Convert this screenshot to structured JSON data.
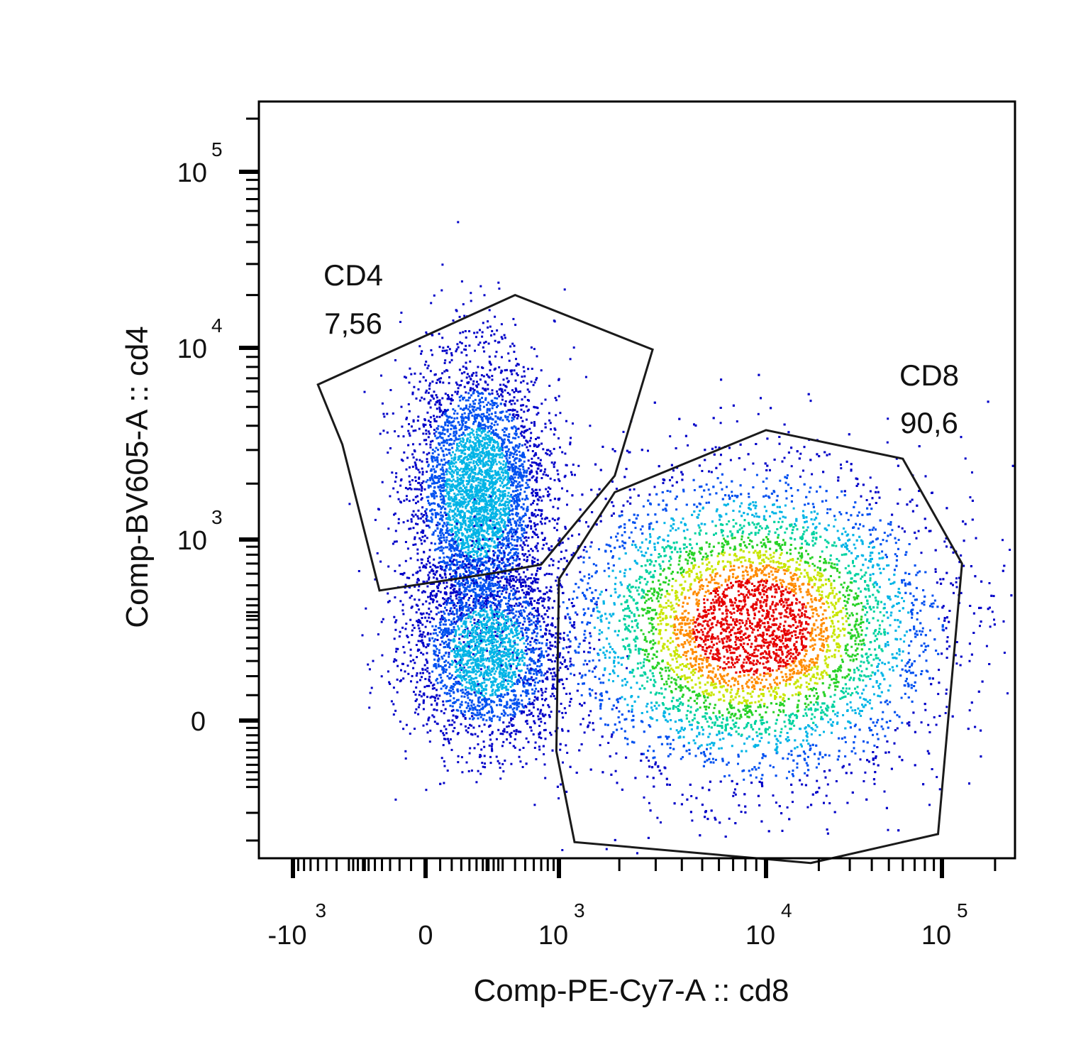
{
  "chart_data": {
    "type": "scatter",
    "plot_style": "density-dot-plot",
    "xlabel": "Comp-PE-Cy7-A :: cd8",
    "ylabel": "Comp-BV605-A :: cd4",
    "x_scale": "biexponential",
    "y_scale": "biexponential",
    "x_ticks": [
      {
        "base": "-10",
        "exp": "3",
        "value": -1000
      },
      {
        "base": "0",
        "exp": "",
        "value": 0
      },
      {
        "base": "10",
        "exp": "3",
        "value": 1000
      },
      {
        "base": "10",
        "exp": "4",
        "value": 10000
      },
      {
        "base": "10",
        "exp": "5",
        "value": 100000
      }
    ],
    "y_ticks": [
      {
        "base": "0",
        "exp": "",
        "value": 0
      },
      {
        "base": "10",
        "exp": "3",
        "value": 1000
      },
      {
        "base": "10",
        "exp": "4",
        "value": 10000
      },
      {
        "base": "10",
        "exp": "5",
        "value": 100000
      }
    ],
    "xlim": [
      -1400,
      250000
    ],
    "ylim": [
      -700,
      250000
    ],
    "grid": false,
    "legend": "none",
    "density_colors": [
      "#0000c8",
      "#0050f0",
      "#00b4e6",
      "#00d2a0",
      "#28d228",
      "#c8e600",
      "#ff8c00",
      "#e60000"
    ],
    "populations": [
      {
        "name": "CD4 cluster",
        "x_center": 150,
        "y_center": 1800,
        "x_spread": 0.35,
        "y_spread": 0.55
      },
      {
        "name": "CD4-CD8- cluster",
        "x_center": 200,
        "y_center": 150,
        "x_spread": 0.4,
        "y_spread": 0.4
      },
      {
        "name": "CD8 cluster",
        "x_center": 8500,
        "y_center": 250,
        "x_spread": 0.45,
        "y_spread": 0.5
      }
    ],
    "gates": [
      {
        "name": "CD4",
        "value": "7,56",
        "label_position": "top-left",
        "vertices": [
          [
            -600,
            6500
          ],
          [
            400,
            20000
          ],
          [
            2900,
            9800
          ],
          [
            1900,
            2200
          ],
          [
            700,
            690
          ],
          [
            260,
            610
          ],
          [
            -130,
            460
          ],
          [
            -350,
            3200
          ]
        ]
      },
      {
        "name": "CD8",
        "value": "90,6",
        "label_position": "top-right",
        "vertices": [
          [
            1900,
            1800
          ],
          [
            10000,
            3800
          ],
          [
            60000,
            2700
          ],
          [
            130000,
            700
          ],
          [
            95000,
            -350
          ],
          [
            18000,
            -560
          ],
          [
            1200,
            -400
          ],
          [
            950,
            -50
          ],
          [
            1000,
            550
          ]
        ]
      }
    ]
  }
}
